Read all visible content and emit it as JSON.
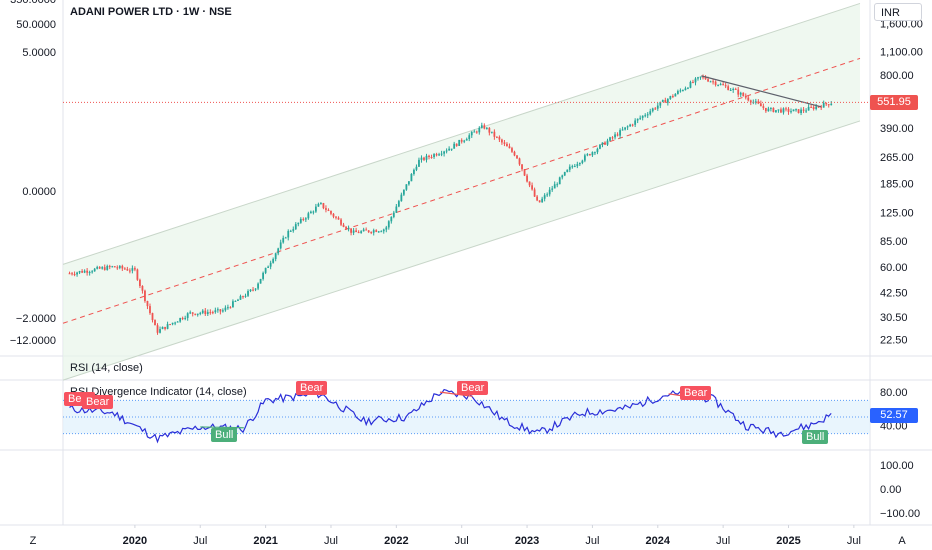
{
  "header": {
    "symbol_title": "ADANI POWER LTD · 1W · NSE",
    "currency": "INR"
  },
  "rsi_pane": {
    "title": "RSI (14, close)",
    "current_value": "52.57",
    "axis_ticks": [
      "80.00",
      "40.00"
    ]
  },
  "divergence_pane": {
    "title": "RSI Divergence Indicator (14, close)",
    "axis_ticks": [
      "100.00",
      "0.00",
      "−100.00"
    ]
  },
  "left_axis": [
    "350.0000",
    "50.0000",
    "5.0000",
    "0.0000",
    "−2.0000",
    "−12.0000"
  ],
  "time_axis": {
    "left_icon": "Z",
    "right_icon": "A",
    "labels": [
      {
        "text": "2020",
        "bold": true
      },
      {
        "text": "Jul",
        "bold": false
      },
      {
        "text": "2021",
        "bold": true
      },
      {
        "text": "Jul",
        "bold": false
      },
      {
        "text": "2022",
        "bold": true
      },
      {
        "text": "Jul",
        "bold": false
      },
      {
        "text": "2023",
        "bold": true
      },
      {
        "text": "Jul",
        "bold": false
      },
      {
        "text": "2024",
        "bold": true
      },
      {
        "text": "Jul",
        "bold": false
      },
      {
        "text": "2025",
        "bold": true
      },
      {
        "text": "Jul",
        "bold": false
      }
    ]
  },
  "signals": [
    {
      "label": "Bear",
      "type": "bear"
    },
    {
      "label": "Bear",
      "type": "bear"
    },
    {
      "label": "Bull",
      "type": "bull"
    },
    {
      "label": "Bear",
      "type": "bear"
    },
    {
      "label": "Bear",
      "type": "bear"
    },
    {
      "label": "Bear",
      "type": "bear"
    },
    {
      "label": "Bull",
      "type": "bull"
    }
  ],
  "colors": {
    "up": "#26a69a",
    "down": "#ef5350",
    "rsi_line": "#2a2ed8",
    "channel_fill": "#e8f5e9",
    "bear_tag": "#f7525f",
    "bull_tag": "#4caf7a",
    "current_price_tag": "#ef5350",
    "rsi_value_tag": "#2962ff"
  },
  "chart_data": {
    "type": "candlestick",
    "title": "ADANI POWER LTD · 1W · NSE",
    "currency": "INR",
    "price_axis_ticks": [
      1600,
      1100,
      800,
      550,
      390,
      265,
      185,
      125,
      85,
      60,
      42.5,
      30.5,
      22.5
    ],
    "price_axis_labels": [
      "1,600.00",
      "1,100.00",
      "800.00",
      "551.95",
      "390.00",
      "265.00",
      "185.00",
      "125.00",
      "85.00",
      "60.00",
      "42.50",
      "30.50",
      "22.50"
    ],
    "current_price": 551.95,
    "price_path": [
      {
        "date": "2019-07",
        "price": 55
      },
      {
        "date": "2019-11",
        "price": 60
      },
      {
        "date": "2020-01",
        "price": 57
      },
      {
        "date": "2020-03",
        "price": 25
      },
      {
        "date": "2020-06",
        "price": 32
      },
      {
        "date": "2020-09",
        "price": 33
      },
      {
        "date": "2020-12",
        "price": 45
      },
      {
        "date": "2021-03",
        "price": 95
      },
      {
        "date": "2021-06",
        "price": 140
      },
      {
        "date": "2021-09",
        "price": 95
      },
      {
        "date": "2021-12",
        "price": 100
      },
      {
        "date": "2022-03",
        "price": 250
      },
      {
        "date": "2022-06",
        "price": 300
      },
      {
        "date": "2022-09",
        "price": 400
      },
      {
        "date": "2022-12",
        "price": 270
      },
      {
        "date": "2023-02",
        "price": 140
      },
      {
        "date": "2023-05",
        "price": 230
      },
      {
        "date": "2023-09",
        "price": 350
      },
      {
        "date": "2024-01",
        "price": 530
      },
      {
        "date": "2024-05",
        "price": 780
      },
      {
        "date": "2024-08",
        "price": 650
      },
      {
        "date": "2024-11",
        "price": 500
      },
      {
        "date": "2025-02",
        "price": 490
      },
      {
        "date": "2025-05",
        "price": 552
      }
    ],
    "channel": {
      "description": "rising regression channel with dashed red midline"
    },
    "rsi": {
      "length": 14,
      "levels": [
        70,
        50,
        30
      ],
      "axis_ticks": [
        80,
        40
      ],
      "current": 52.57,
      "series": [
        {
          "date": "2019-07",
          "value": 60
        },
        {
          "date": "2019-11",
          "value": 55
        },
        {
          "date": "2020-03",
          "value": 24
        },
        {
          "date": "2020-07",
          "value": 38
        },
        {
          "date": "2020-11",
          "value": 36
        },
        {
          "date": "2021-01",
          "value": 70
        },
        {
          "date": "2021-06",
          "value": 78
        },
        {
          "date": "2021-10",
          "value": 45
        },
        {
          "date": "2022-02",
          "value": 50
        },
        {
          "date": "2022-05",
          "value": 80
        },
        {
          "date": "2022-08",
          "value": 75
        },
        {
          "date": "2022-11",
          "value": 45
        },
        {
          "date": "2023-02",
          "value": 30
        },
        {
          "date": "2023-06",
          "value": 55
        },
        {
          "date": "2023-10",
          "value": 60
        },
        {
          "date": "2024-02",
          "value": 78
        },
        {
          "date": "2024-06",
          "value": 72
        },
        {
          "date": "2024-09",
          "value": 40
        },
        {
          "date": "2024-12",
          "value": 30
        },
        {
          "date": "2025-03",
          "value": 40
        },
        {
          "date": "2025-05",
          "value": 52.57
        }
      ]
    },
    "divergence_axis_ticks": [
      100,
      0,
      -100
    ]
  }
}
